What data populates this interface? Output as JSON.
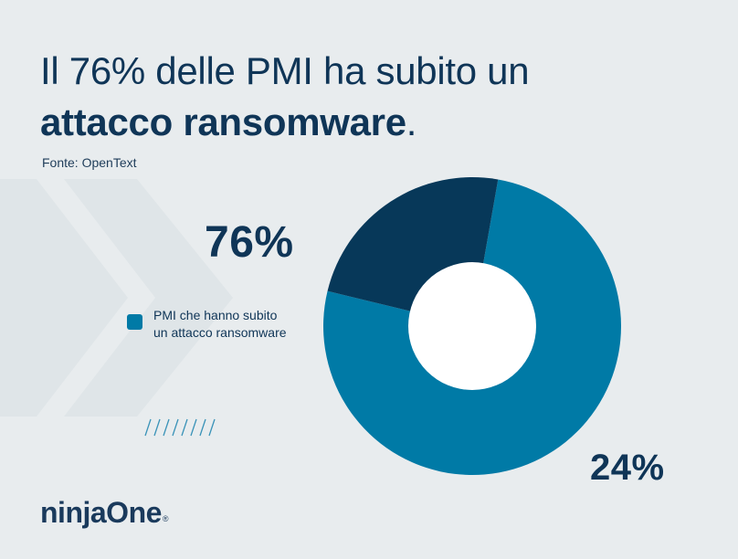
{
  "header": {
    "title_line1": "Il 76% delle PMI ha subito un",
    "title_bold": "attacco ransomware",
    "title_tail": ".",
    "source": "Fonte: OpenText"
  },
  "labels": {
    "main_pct": "76%",
    "other_pct": "24%"
  },
  "legend": {
    "line1": "PMI che hanno subito",
    "line2": "un attacco ransomware"
  },
  "logo": {
    "text": "ninjaOne",
    "mark": "®"
  },
  "colors": {
    "primary": "#007aa6",
    "secondary": "#073859",
    "background": "#e8ecee",
    "text": "#0f3557"
  },
  "chart_data": {
    "type": "pie",
    "donut": true,
    "slices": [
      {
        "label": "PMI che hanno subito un attacco ransomware",
        "value": 76,
        "color": "#007aa6"
      },
      {
        "label": "",
        "value": 24,
        "color": "#073859"
      }
    ],
    "start_angle_deg": 80,
    "legend_position": "left"
  }
}
